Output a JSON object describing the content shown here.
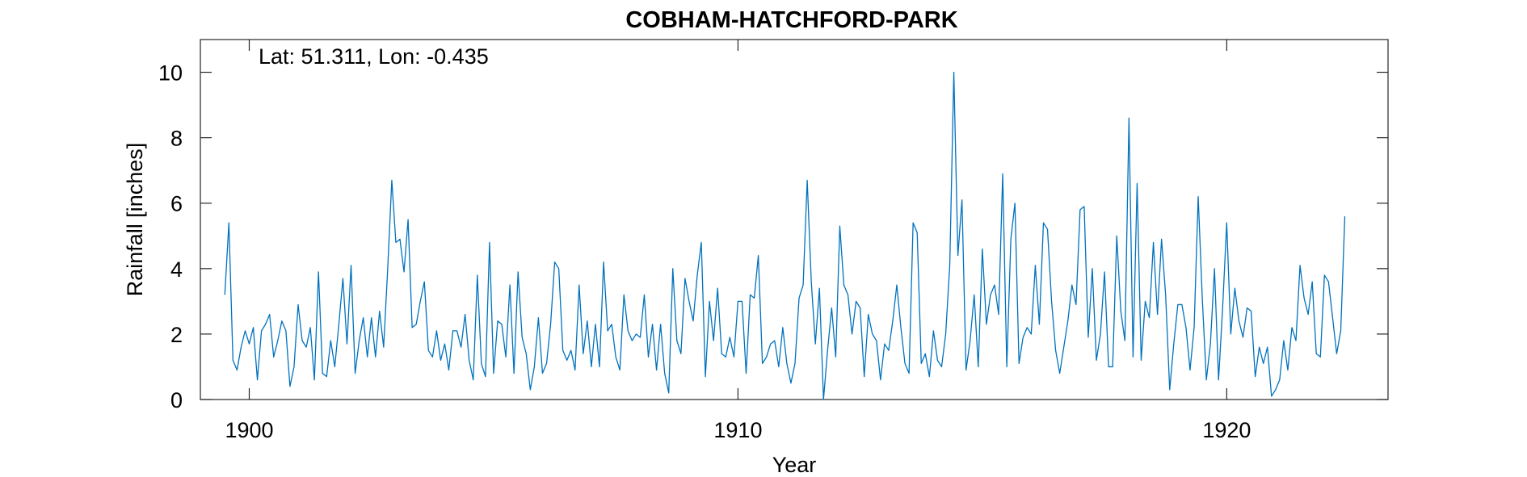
{
  "chart_data": {
    "type": "line",
    "title": "COBHAM-HATCHFORD-PARK",
    "annotation": "Lat: 51.311, Lon: -0.435",
    "xlabel": "Year",
    "ylabel": "Rainfall [inches]",
    "xlim": [
      1899,
      1923.3
    ],
    "ylim": [
      0,
      11
    ],
    "xticks": [
      1900,
      1910,
      1920
    ],
    "yticks": [
      0,
      2,
      4,
      6,
      8,
      10
    ],
    "grid": false,
    "line_color": "#0072BD",
    "series": [
      {
        "x_start": 1899.5,
        "step_years": 0.08333,
        "values": [
          3.2,
          5.4,
          1.2,
          0.9,
          1.6,
          2.1,
          1.7,
          2.2,
          0.6,
          2.1,
          2.3,
          2.6,
          1.3,
          1.8,
          2.4,
          2.1,
          0.4,
          1.0,
          2.9,
          1.8,
          1.6,
          2.2,
          0.6,
          3.9,
          0.8,
          0.7,
          1.8,
          1.0,
          2.3,
          3.7,
          1.7,
          4.1,
          0.8,
          1.8,
          2.5,
          1.3,
          2.5,
          1.3,
          2.7,
          1.6,
          4.0,
          6.7,
          4.8,
          4.9,
          3.9,
          5.5,
          2.2,
          2.3,
          3.0,
          3.6,
          1.5,
          1.3,
          2.1,
          1.2,
          1.7,
          0.9,
          2.1,
          2.1,
          1.6,
          2.6,
          1.2,
          0.6,
          3.8,
          1.1,
          0.7,
          4.8,
          0.8,
          2.4,
          2.3,
          1.3,
          3.5,
          0.8,
          3.9,
          1.9,
          1.4,
          0.3,
          1.0,
          2.5,
          0.8,
          1.1,
          2.3,
          4.2,
          4.0,
          1.5,
          1.2,
          1.5,
          0.9,
          3.5,
          1.4,
          2.4,
          1.0,
          2.3,
          1.0,
          4.2,
          2.1,
          2.3,
          1.3,
          0.9,
          3.2,
          2.1,
          1.8,
          2.0,
          1.9,
          3.2,
          1.3,
          2.3,
          0.9,
          2.3,
          0.8,
          0.2,
          4.0,
          1.8,
          1.4,
          3.7,
          3.0,
          2.4,
          3.8,
          4.8,
          0.7,
          3.0,
          1.8,
          3.4,
          1.4,
          1.3,
          1.9,
          1.3,
          3.0,
          3.0,
          0.8,
          3.2,
          3.1,
          4.4,
          1.1,
          1.3,
          1.7,
          1.8,
          1.0,
          2.2,
          1.1,
          0.5,
          1.1,
          3.1,
          3.5,
          6.7,
          3.6,
          1.7,
          3.4,
          0.0,
          1.5,
          2.8,
          1.3,
          5.3,
          3.5,
          3.2,
          2.0,
          3.0,
          2.8,
          0.7,
          2.6,
          2.0,
          1.8,
          0.6,
          1.7,
          1.5,
          2.4,
          3.5,
          2.2,
          1.1,
          0.8,
          5.4,
          5.1,
          1.1,
          1.4,
          0.7,
          2.1,
          1.2,
          1.0,
          2.0,
          4.1,
          10.0,
          4.4,
          6.1,
          0.9,
          1.8,
          3.2,
          1.0,
          4.6,
          2.3,
          3.2,
          3.5,
          2.6,
          6.9,
          1.0,
          4.9,
          6.0,
          1.1,
          1.9,
          2.2,
          2.0,
          4.1,
          2.3,
          5.4,
          5.2,
          3.0,
          1.5,
          0.8,
          1.6,
          2.4,
          3.5,
          2.9,
          5.8,
          5.9,
          1.9,
          4.0,
          1.2,
          2.0,
          3.9,
          1.0,
          1.0,
          5.0,
          2.7,
          1.8,
          8.6,
          1.3,
          6.6,
          1.2,
          3.0,
          2.5,
          4.8,
          2.6,
          4.9,
          3.2,
          0.3,
          1.7,
          2.9,
          2.9,
          2.2,
          0.9,
          2.2,
          6.2,
          3.1,
          0.6,
          1.7,
          4.0,
          0.6,
          2.8,
          5.4,
          2.0,
          3.4,
          2.4,
          1.9,
          2.8,
          2.7,
          0.7,
          1.6,
          1.1,
          1.6,
          0.1,
          0.3,
          0.6,
          1.8,
          0.9,
          2.2,
          1.8,
          4.1,
          3.1,
          2.6,
          3.6,
          1.4,
          1.3,
          3.8,
          3.6,
          2.5,
          1.4,
          2.1,
          5.6
        ]
      }
    ]
  }
}
